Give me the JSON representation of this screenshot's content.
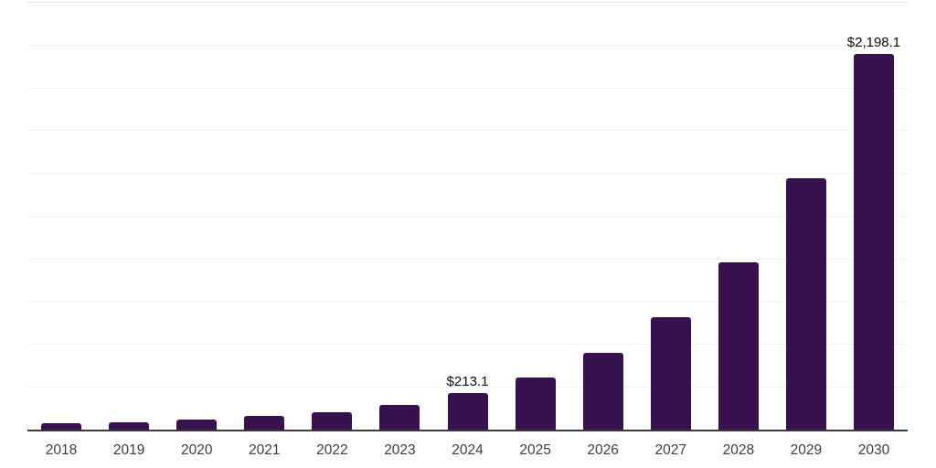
{
  "chart_data": {
    "type": "bar",
    "title": "",
    "xlabel": "",
    "ylabel": "",
    "categories": [
      "2018",
      "2019",
      "2020",
      "2021",
      "2022",
      "2023",
      "2024",
      "2025",
      "2026",
      "2027",
      "2028",
      "2029",
      "2030"
    ],
    "values": [
      37,
      43,
      59,
      78,
      102,
      146,
      213.1,
      306,
      449,
      659,
      979,
      1469,
      2198.1
    ],
    "data_labels": [
      {
        "index": 6,
        "text": "$213.1"
      },
      {
        "index": 12,
        "text": "$2,198.1"
      }
    ],
    "ylim": [
      0,
      2500
    ],
    "gridline_step": 250,
    "grid": true,
    "legend": false,
    "colors": {
      "bar": "#38124f",
      "axis_line": "#3a3a3a",
      "gridline": "#f3f3f3",
      "gridline_top": "#e2e2e2",
      "data_label": "#0b0b0b",
      "tick_label": "#3d3d3d",
      "background": "#ffffff"
    }
  }
}
